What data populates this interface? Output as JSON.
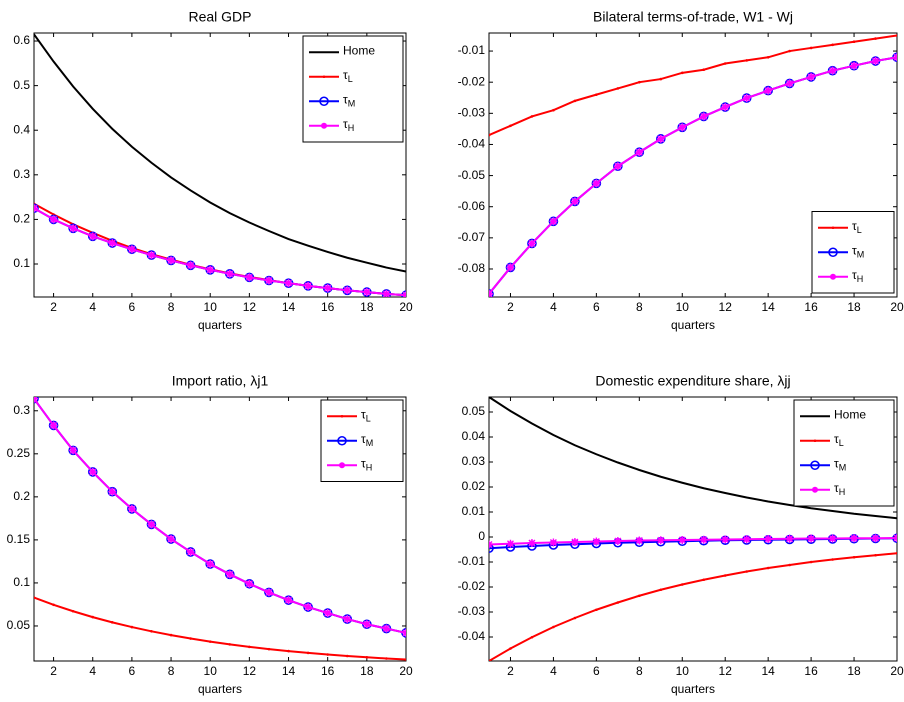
{
  "chart_data": [
    {
      "type": "line",
      "title": "Real GDP",
      "xlabel": "quarters",
      "x": [
        1,
        2,
        3,
        4,
        5,
        6,
        7,
        8,
        9,
        10,
        11,
        12,
        13,
        14,
        15,
        16,
        17,
        18,
        19,
        20
      ],
      "xlim": [
        1,
        20
      ],
      "xticks": [
        2,
        4,
        6,
        8,
        10,
        12,
        14,
        16,
        18,
        20
      ],
      "ylim": [
        0.026,
        0.618
      ],
      "yticks": [
        0.1,
        0.2,
        0.3,
        0.4,
        0.5,
        0.6
      ],
      "legend": "upper right",
      "series": [
        {
          "name": "Home",
          "color": "#000000",
          "marker": "none",
          "values": [
            0.615,
            0.554,
            0.498,
            0.448,
            0.403,
            0.363,
            0.327,
            0.294,
            0.265,
            0.238,
            0.214,
            0.193,
            0.174,
            0.156,
            0.141,
            0.127,
            0.114,
            0.103,
            0.092,
            0.083
          ]
        },
        {
          "name": "τL",
          "color": "#ff0000",
          "marker": "dot",
          "values": [
            0.235,
            0.211,
            0.189,
            0.17,
            0.152,
            0.136,
            0.122,
            0.11,
            0.098,
            0.088,
            0.079,
            0.071,
            0.064,
            0.057,
            0.051,
            0.046,
            0.041,
            0.037,
            0.033,
            0.03
          ]
        },
        {
          "name": "τM",
          "color": "#0000ff",
          "marker": "circle",
          "values": [
            0.225,
            0.2,
            0.18,
            0.162,
            0.147,
            0.133,
            0.12,
            0.108,
            0.097,
            0.087,
            0.078,
            0.07,
            0.063,
            0.057,
            0.051,
            0.046,
            0.041,
            0.037,
            0.033,
            0.03
          ]
        },
        {
          "name": "τH",
          "color": "#ff00ff",
          "marker": "star",
          "values": [
            0.225,
            0.2,
            0.18,
            0.162,
            0.147,
            0.133,
            0.12,
            0.108,
            0.097,
            0.087,
            0.078,
            0.07,
            0.063,
            0.057,
            0.051,
            0.046,
            0.041,
            0.037,
            0.033,
            0.03
          ]
        }
      ]
    },
    {
      "type": "line",
      "title": "Bilateral terms-of-trade, W1 - Wj",
      "xlabel": "quarters",
      "x": [
        1,
        2,
        3,
        4,
        5,
        6,
        7,
        8,
        9,
        10,
        11,
        12,
        13,
        14,
        15,
        16,
        17,
        18,
        19,
        20
      ],
      "xlim": [
        1,
        20
      ],
      "xticks": [
        2,
        4,
        6,
        8,
        10,
        12,
        14,
        16,
        18,
        20
      ],
      "ylim": [
        -0.089,
        -0.0042
      ],
      "yticks": [
        -0.08,
        -0.07,
        -0.06,
        -0.05,
        -0.04,
        -0.03,
        -0.02,
        -0.01
      ],
      "legend": "lower right",
      "series": [
        {
          "name": "τL",
          "color": "#ff0000",
          "marker": "dot",
          "values": [
            -0.037,
            -0.034,
            -0.031,
            -0.029,
            -0.026,
            -0.024,
            -0.022,
            -0.02,
            -0.019,
            -0.017,
            -0.016,
            -0.014,
            -0.013,
            -0.012,
            -0.01,
            -0.009,
            -0.008,
            -0.007,
            -0.006,
            -0.005
          ]
        },
        {
          "name": "τM",
          "color": "#0000ff",
          "marker": "circle",
          "values": [
            -0.088,
            -0.0795,
            -0.0718,
            -0.0647,
            -0.0583,
            -0.0525,
            -0.047,
            -0.0425,
            -0.0382,
            -0.0345,
            -0.031,
            -0.028,
            -0.0251,
            -0.0227,
            -0.0204,
            -0.0183,
            -0.0163,
            -0.0147,
            -0.0132,
            -0.012
          ]
        },
        {
          "name": "τH",
          "color": "#ff00ff",
          "marker": "star",
          "values": [
            -0.088,
            -0.0795,
            -0.0718,
            -0.0647,
            -0.0583,
            -0.0525,
            -0.047,
            -0.0425,
            -0.0382,
            -0.0345,
            -0.031,
            -0.028,
            -0.0251,
            -0.0227,
            -0.0204,
            -0.0183,
            -0.0163,
            -0.0147,
            -0.0132,
            -0.012
          ]
        }
      ]
    },
    {
      "type": "line",
      "title": "Import ratio, λj1",
      "xlabel": "quarters",
      "x": [
        1,
        2,
        3,
        4,
        5,
        6,
        7,
        8,
        9,
        10,
        11,
        12,
        13,
        14,
        15,
        16,
        17,
        18,
        19,
        20
      ],
      "xlim": [
        1,
        20
      ],
      "xticks": [
        2,
        4,
        6,
        8,
        10,
        12,
        14,
        16,
        18,
        20
      ],
      "ylim": [
        0.0093,
        0.316
      ],
      "yticks": [
        0.05,
        0.1,
        0.15,
        0.2,
        0.25,
        0.3
      ],
      "legend": "upper right",
      "series": [
        {
          "name": "τL",
          "color": "#ff0000",
          "marker": "dot",
          "values": [
            0.083,
            0.0746,
            0.0671,
            0.0603,
            0.0542,
            0.0487,
            0.0438,
            0.0394,
            0.0354,
            0.0318,
            0.0286,
            0.0257,
            0.0231,
            0.0208,
            0.0187,
            0.0168,
            0.0151,
            0.0136,
            0.0122,
            0.011
          ]
        },
        {
          "name": "τM",
          "color": "#0000ff",
          "marker": "circle",
          "values": [
            0.314,
            0.283,
            0.254,
            0.229,
            0.206,
            0.186,
            0.168,
            0.151,
            0.136,
            0.122,
            0.11,
            0.099,
            0.089,
            0.08,
            0.072,
            0.065,
            0.058,
            0.052,
            0.047,
            0.042
          ]
        },
        {
          "name": "τH",
          "color": "#ff00ff",
          "marker": "star",
          "values": [
            0.314,
            0.283,
            0.254,
            0.229,
            0.206,
            0.186,
            0.168,
            0.151,
            0.136,
            0.122,
            0.11,
            0.099,
            0.089,
            0.08,
            0.072,
            0.065,
            0.058,
            0.052,
            0.047,
            0.042
          ]
        }
      ]
    },
    {
      "type": "line",
      "title": "Domestic expenditure share, λjj",
      "xlabel": "quarters",
      "x": [
        1,
        2,
        3,
        4,
        5,
        6,
        7,
        8,
        9,
        10,
        11,
        12,
        13,
        14,
        15,
        16,
        17,
        18,
        19,
        20
      ],
      "xlim": [
        1,
        20
      ],
      "xticks": [
        2,
        4,
        6,
        8,
        10,
        12,
        14,
        16,
        18,
        20
      ],
      "ylim": [
        -0.0496,
        0.056
      ],
      "yticks": [
        -0.04,
        -0.03,
        -0.02,
        -0.01,
        0,
        0.01,
        0.02,
        0.03,
        0.04,
        0.05
      ],
      "legend": "upper right",
      "series": [
        {
          "name": "Home",
          "color": "#000000",
          "marker": "none",
          "values": [
            0.056,
            0.0504,
            0.0454,
            0.0408,
            0.0367,
            0.0331,
            0.0298,
            0.0268,
            0.0241,
            0.0217,
            0.0195,
            0.0176,
            0.0158,
            0.0142,
            0.0128,
            0.0115,
            0.0104,
            0.0093,
            0.0084,
            0.0075
          ]
        },
        {
          "name": "τL",
          "color": "#ff0000",
          "marker": "dot",
          "values": [
            -0.0496,
            -0.0446,
            -0.0401,
            -0.036,
            -0.0324,
            -0.0291,
            -0.0262,
            -0.0235,
            -0.0211,
            -0.019,
            -0.0171,
            -0.0154,
            -0.0138,
            -0.0124,
            -0.0112,
            -0.01,
            -0.009,
            -0.0081,
            -0.0073,
            -0.0065
          ]
        },
        {
          "name": "τM",
          "color": "#0000ff",
          "marker": "circle",
          "values": [
            -0.0045,
            -0.004,
            -0.0036,
            -0.0032,
            -0.0029,
            -0.0026,
            -0.0023,
            -0.0021,
            -0.0019,
            -0.0017,
            -0.0015,
            -0.0013,
            -0.0012,
            -0.0011,
            -0.001,
            -0.0009,
            -0.0008,
            -0.0007,
            -0.0006,
            -0.0005
          ]
        },
        {
          "name": "τH",
          "color": "#ff00ff",
          "marker": "star",
          "values": [
            -0.003,
            -0.0027,
            -0.0024,
            -0.0022,
            -0.002,
            -0.0018,
            -0.0016,
            -0.0014,
            -0.0013,
            -0.0012,
            -0.0011,
            -0.001,
            -0.0009,
            -0.0008,
            -0.0007,
            -0.0006,
            -0.0006,
            -0.0005,
            -0.0005,
            -0.0004
          ]
        }
      ]
    }
  ]
}
